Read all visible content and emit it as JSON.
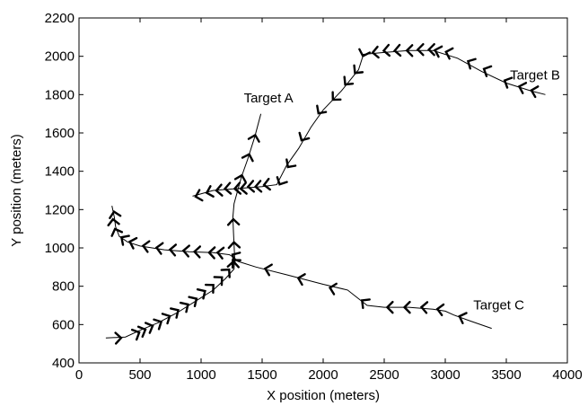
{
  "chart_data": {
    "type": "line",
    "title": "",
    "xlabel": "X position (meters)",
    "ylabel": "Y position (meters)",
    "xlim": [
      0,
      4000
    ],
    "ylim": [
      400,
      2200
    ],
    "xticks": [
      0,
      500,
      1000,
      1500,
      2000,
      2500,
      3000,
      3500,
      4000
    ],
    "yticks": [
      400,
      600,
      800,
      1000,
      1200,
      1400,
      1600,
      1800,
      2000,
      2200
    ],
    "grid": false,
    "legend": "none",
    "annotations": [
      {
        "text": "Target A",
        "x": 1350,
        "y": 1760
      },
      {
        "text": "Target B",
        "x": 3530,
        "y": 1880
      },
      {
        "text": "Target C",
        "x": 3230,
        "y": 680
      }
    ],
    "series": [
      {
        "label": "Target A",
        "color": "#000000",
        "points": [
          [
            1490,
            1700
          ],
          [
            1440,
            1580
          ],
          [
            1380,
            1460
          ],
          [
            1330,
            1370
          ],
          [
            1300,
            1300
          ],
          [
            1270,
            1230
          ],
          [
            1260,
            1160
          ],
          [
            1265,
            1090
          ],
          [
            1270,
            1020
          ],
          [
            1275,
            950
          ],
          [
            1270,
            890
          ],
          [
            1200,
            840
          ],
          [
            1100,
            780
          ],
          [
            950,
            720
          ],
          [
            800,
            660
          ],
          [
            650,
            610
          ],
          [
            500,
            570
          ],
          [
            380,
            535
          ],
          [
            220,
            530
          ]
        ],
        "markers": [
          [
            1440,
            1580
          ],
          [
            1390,
            1480
          ],
          [
            1330,
            1370
          ],
          [
            1265,
            1140
          ],
          [
            1270,
            1020
          ],
          [
            1265,
            920
          ],
          [
            1220,
            880
          ],
          [
            1160,
            840
          ],
          [
            1090,
            800
          ],
          [
            1020,
            770
          ],
          [
            950,
            730
          ],
          [
            880,
            700
          ],
          [
            800,
            670
          ],
          [
            730,
            640
          ],
          [
            660,
            610
          ],
          [
            590,
            590
          ],
          [
            530,
            570
          ],
          [
            480,
            555
          ],
          [
            330,
            530
          ]
        ]
      },
      {
        "label": "Target B",
        "color": "#000000",
        "points": [
          [
            930,
            1270
          ],
          [
            1100,
            1300
          ],
          [
            1300,
            1310
          ],
          [
            1500,
            1320
          ],
          [
            1620,
            1330
          ],
          [
            1700,
            1430
          ],
          [
            1800,
            1520
          ],
          [
            1900,
            1630
          ],
          [
            2000,
            1720
          ],
          [
            2150,
            1820
          ],
          [
            2290,
            1930
          ],
          [
            2330,
            2010
          ],
          [
            2500,
            2020
          ],
          [
            2700,
            2030
          ],
          [
            2900,
            2030
          ],
          [
            3100,
            1990
          ],
          [
            3300,
            1920
          ],
          [
            3500,
            1860
          ],
          [
            3700,
            1820
          ],
          [
            3820,
            1800
          ]
        ],
        "markers": [
          [
            970,
            1270
          ],
          [
            1060,
            1290
          ],
          [
            1140,
            1300
          ],
          [
            1210,
            1310
          ],
          [
            1290,
            1310
          ],
          [
            1340,
            1310
          ],
          [
            1400,
            1320
          ],
          [
            1460,
            1320
          ],
          [
            1530,
            1330
          ],
          [
            1650,
            1340
          ],
          [
            1720,
            1430
          ],
          [
            1830,
            1570
          ],
          [
            1970,
            1710
          ],
          [
            2090,
            1780
          ],
          [
            2190,
            1860
          ],
          [
            2270,
            1920
          ],
          [
            2330,
            2010
          ],
          [
            2420,
            2020
          ],
          [
            2510,
            2030
          ],
          [
            2600,
            2030
          ],
          [
            2700,
            2030
          ],
          [
            2790,
            2035
          ],
          [
            2880,
            2035
          ],
          [
            2930,
            2030
          ],
          [
            3020,
            2020
          ],
          [
            3200,
            1970
          ],
          [
            3330,
            1930
          ],
          [
            3500,
            1870
          ],
          [
            3620,
            1840
          ],
          [
            3720,
            1820
          ]
        ]
      },
      {
        "label": "Target C",
        "color": "#000000",
        "points": [
          [
            270,
            1220
          ],
          [
            290,
            1160
          ],
          [
            300,
            1110
          ],
          [
            330,
            1060
          ],
          [
            400,
            1030
          ],
          [
            500,
            1010
          ],
          [
            700,
            990
          ],
          [
            900,
            980
          ],
          [
            1100,
            975
          ],
          [
            1230,
            965
          ],
          [
            1270,
            950
          ],
          [
            1300,
            930
          ],
          [
            1450,
            900
          ],
          [
            1700,
            860
          ],
          [
            2000,
            810
          ],
          [
            2200,
            780
          ],
          [
            2300,
            730
          ],
          [
            2360,
            700
          ],
          [
            2500,
            690
          ],
          [
            2700,
            690
          ],
          [
            2900,
            680
          ],
          [
            3000,
            670
          ],
          [
            3070,
            650
          ],
          [
            3200,
            620
          ],
          [
            3380,
            580
          ]
        ],
        "markers": [
          [
            290,
            1180
          ],
          [
            280,
            1140
          ],
          [
            300,
            1090
          ],
          [
            360,
            1050
          ],
          [
            430,
            1030
          ],
          [
            540,
            1010
          ],
          [
            650,
            1000
          ],
          [
            760,
            990
          ],
          [
            870,
            985
          ],
          [
            960,
            980
          ],
          [
            1080,
            975
          ],
          [
            1150,
            975
          ],
          [
            1270,
            960
          ],
          [
            1270,
            930
          ],
          [
            1540,
            890
          ],
          [
            1810,
            840
          ],
          [
            2070,
            790
          ],
          [
            2330,
            720
          ],
          [
            2540,
            690
          ],
          [
            2680,
            690
          ],
          [
            2820,
            690
          ],
          [
            2950,
            680
          ],
          [
            3130,
            640
          ]
        ]
      }
    ]
  }
}
